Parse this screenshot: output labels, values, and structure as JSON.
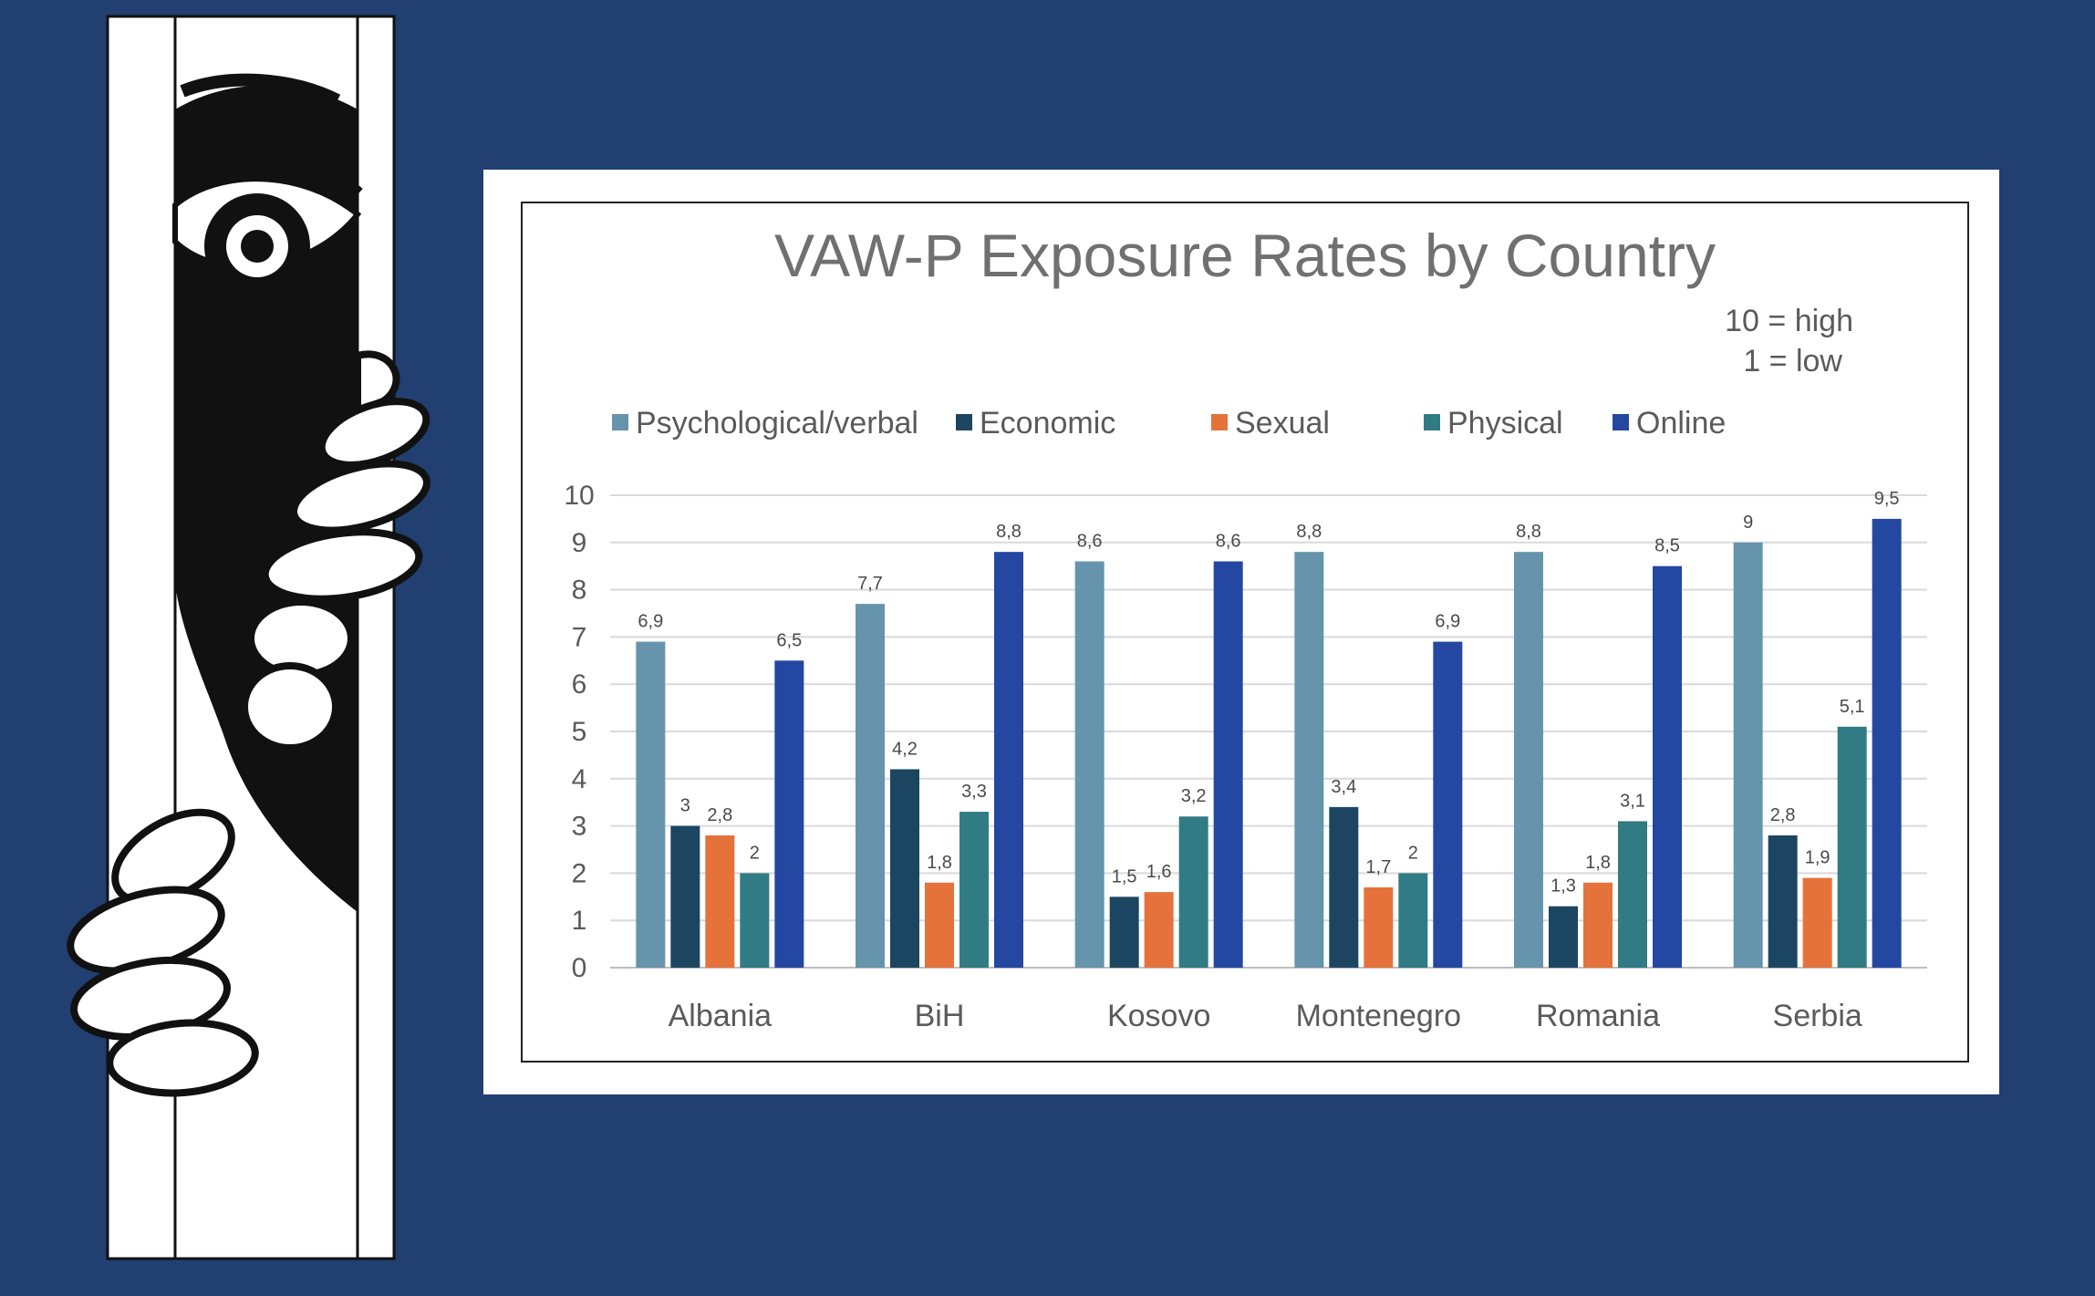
{
  "page": {
    "background": "#213f70",
    "card_background": "#ffffff"
  },
  "chart_data": {
    "type": "bar",
    "title": "VAW-P Exposure Rates by Country",
    "scale_note": {
      "line1": "10 = high",
      "line2": "1 = low"
    },
    "categories": [
      "Albania",
      "BiH",
      "Kosovo",
      "Montenegro",
      "Romania",
      "Serbia"
    ],
    "series": [
      {
        "name": "Psychological/verbal",
        "color": "#6794ad",
        "values": [
          6.9,
          7.7,
          8.6,
          8.8,
          8.8,
          9
        ],
        "labels": [
          "6,9",
          "7,7",
          "8,6",
          "8,8",
          "8,8",
          "9"
        ]
      },
      {
        "name": "Economic",
        "color": "#1c4562",
        "values": [
          3,
          4.2,
          1.5,
          3.4,
          1.3,
          2.8
        ],
        "labels": [
          "3",
          "4,2",
          "1,5",
          "3,4",
          "1,3",
          "2,8"
        ]
      },
      {
        "name": "Sexual",
        "color": "#e5723b",
        "values": [
          2.8,
          1.8,
          1.6,
          1.7,
          1.8,
          1.9
        ],
        "labels": [
          "2,8",
          "1,8",
          "1,6",
          "1,7",
          "1,8",
          "1,9"
        ]
      },
      {
        "name": "Physical",
        "color": "#317b84",
        "values": [
          2,
          3.3,
          3.2,
          2,
          3.1,
          5.1
        ],
        "labels": [
          "2",
          "3,3",
          "3,2",
          "2",
          "3,1",
          "5,1"
        ]
      },
      {
        "name": "Online",
        "color": "#2447a2",
        "values": [
          6.5,
          8.8,
          8.6,
          6.9,
          8.5,
          9.5
        ],
        "labels": [
          "6,5",
          "8,8",
          "8,6",
          "6,9",
          "8,5",
          "9,5"
        ]
      }
    ],
    "ylim": [
      0,
      10
    ],
    "yticks": [
      "0",
      "1",
      "2",
      "3",
      "4",
      "5",
      "6",
      "7",
      "8",
      "9",
      "10"
    ],
    "grid": true,
    "legend_position": "top"
  }
}
